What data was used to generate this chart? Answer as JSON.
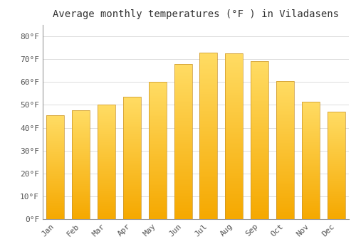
{
  "title": "Average monthly temperatures (°F ) in Viladasens",
  "months": [
    "Jan",
    "Feb",
    "Mar",
    "Apr",
    "May",
    "Jun",
    "Jul",
    "Aug",
    "Sep",
    "Oct",
    "Nov",
    "Dec"
  ],
  "values": [
    45.5,
    47.5,
    50.0,
    53.5,
    60.0,
    68.0,
    73.0,
    72.5,
    69.0,
    60.5,
    51.5,
    47.0
  ],
  "bar_color_bottom": "#F5A800",
  "bar_color_top": "#FFD966",
  "bar_edge_color": "#C8922A",
  "background_color": "#FFFFFF",
  "grid_color": "#DDDDDD",
  "title_fontsize": 10,
  "tick_fontsize": 8,
  "yticks": [
    0,
    10,
    20,
    30,
    40,
    50,
    60,
    70,
    80
  ],
  "ylim": [
    0,
    85
  ],
  "ylabel_format": "°F"
}
